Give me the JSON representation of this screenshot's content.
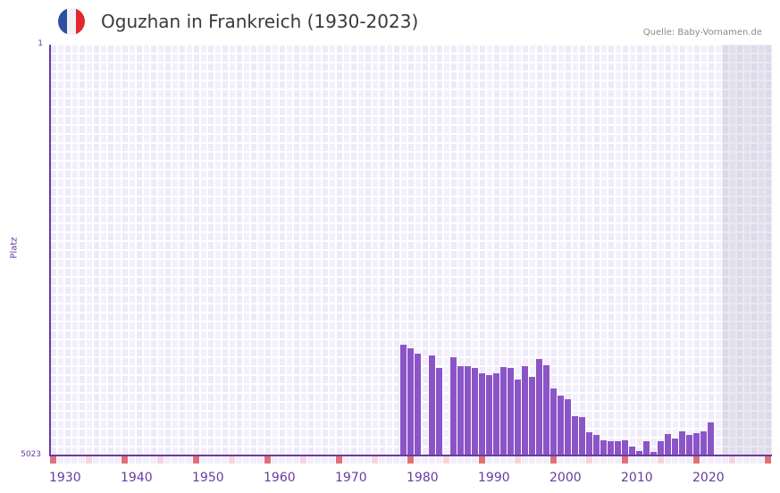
{
  "header": {
    "title": "Oguzhan in Frankreich (1930-2023)",
    "source": "Quelle: Baby-Vornamen.de",
    "flag": {
      "name": "france-flag",
      "colors": [
        "#2d4fa2",
        "#f2f2f5",
        "#e4262f"
      ]
    }
  },
  "axes": {
    "y_title": "Platz",
    "y_top_label": "1",
    "y_bottom_label": "5023",
    "x_labels": [
      "1930",
      "1940",
      "1950",
      "1960",
      "1970",
      "1980",
      "1990",
      "2000",
      "2010",
      "2020"
    ]
  },
  "colors": {
    "bar": "#8b55c8",
    "axis": "#6a3aa0",
    "decade_tick": "#e07078",
    "half_decade_tick": "#f5d5dd",
    "grid_a": "#efeaf8",
    "grid_b": "#f3f0fb"
  },
  "chart_data": {
    "type": "bar",
    "title": "Oguzhan in Frankreich (1930-2023)",
    "xlabel": "",
    "ylabel": "Platz",
    "ylim": [
      5023,
      1
    ],
    "y_inverted": true,
    "x_range": [
      1930,
      2030
    ],
    "shaded_future_from": 2024,
    "grid": true,
    "categories": [
      1979,
      1980,
      1981,
      1983,
      1984,
      1986,
      1987,
      1988,
      1989,
      1990,
      1991,
      1992,
      1993,
      1994,
      1995,
      1996,
      1997,
      1998,
      1999,
      2000,
      2001,
      2002,
      2003,
      2004,
      2005,
      2006,
      2007,
      2008,
      2009,
      2010,
      2011,
      2012,
      2013,
      2014,
      2015,
      2016,
      2017,
      2018,
      2019,
      2020,
      2021,
      2022
    ],
    "values": [
      3669,
      3713,
      3778,
      3800,
      3953,
      3822,
      3931,
      3931,
      3953,
      4018,
      4040,
      4018,
      3942,
      3953,
      4095,
      3931,
      4062,
      3844,
      3920,
      4204,
      4291,
      4335,
      4542,
      4553,
      4739,
      4772,
      4837,
      4848,
      4848,
      4837,
      4914,
      4968,
      4848,
      4979,
      4848,
      4761,
      4815,
      4728,
      4772,
      4750,
      4728,
      4619
    ]
  }
}
